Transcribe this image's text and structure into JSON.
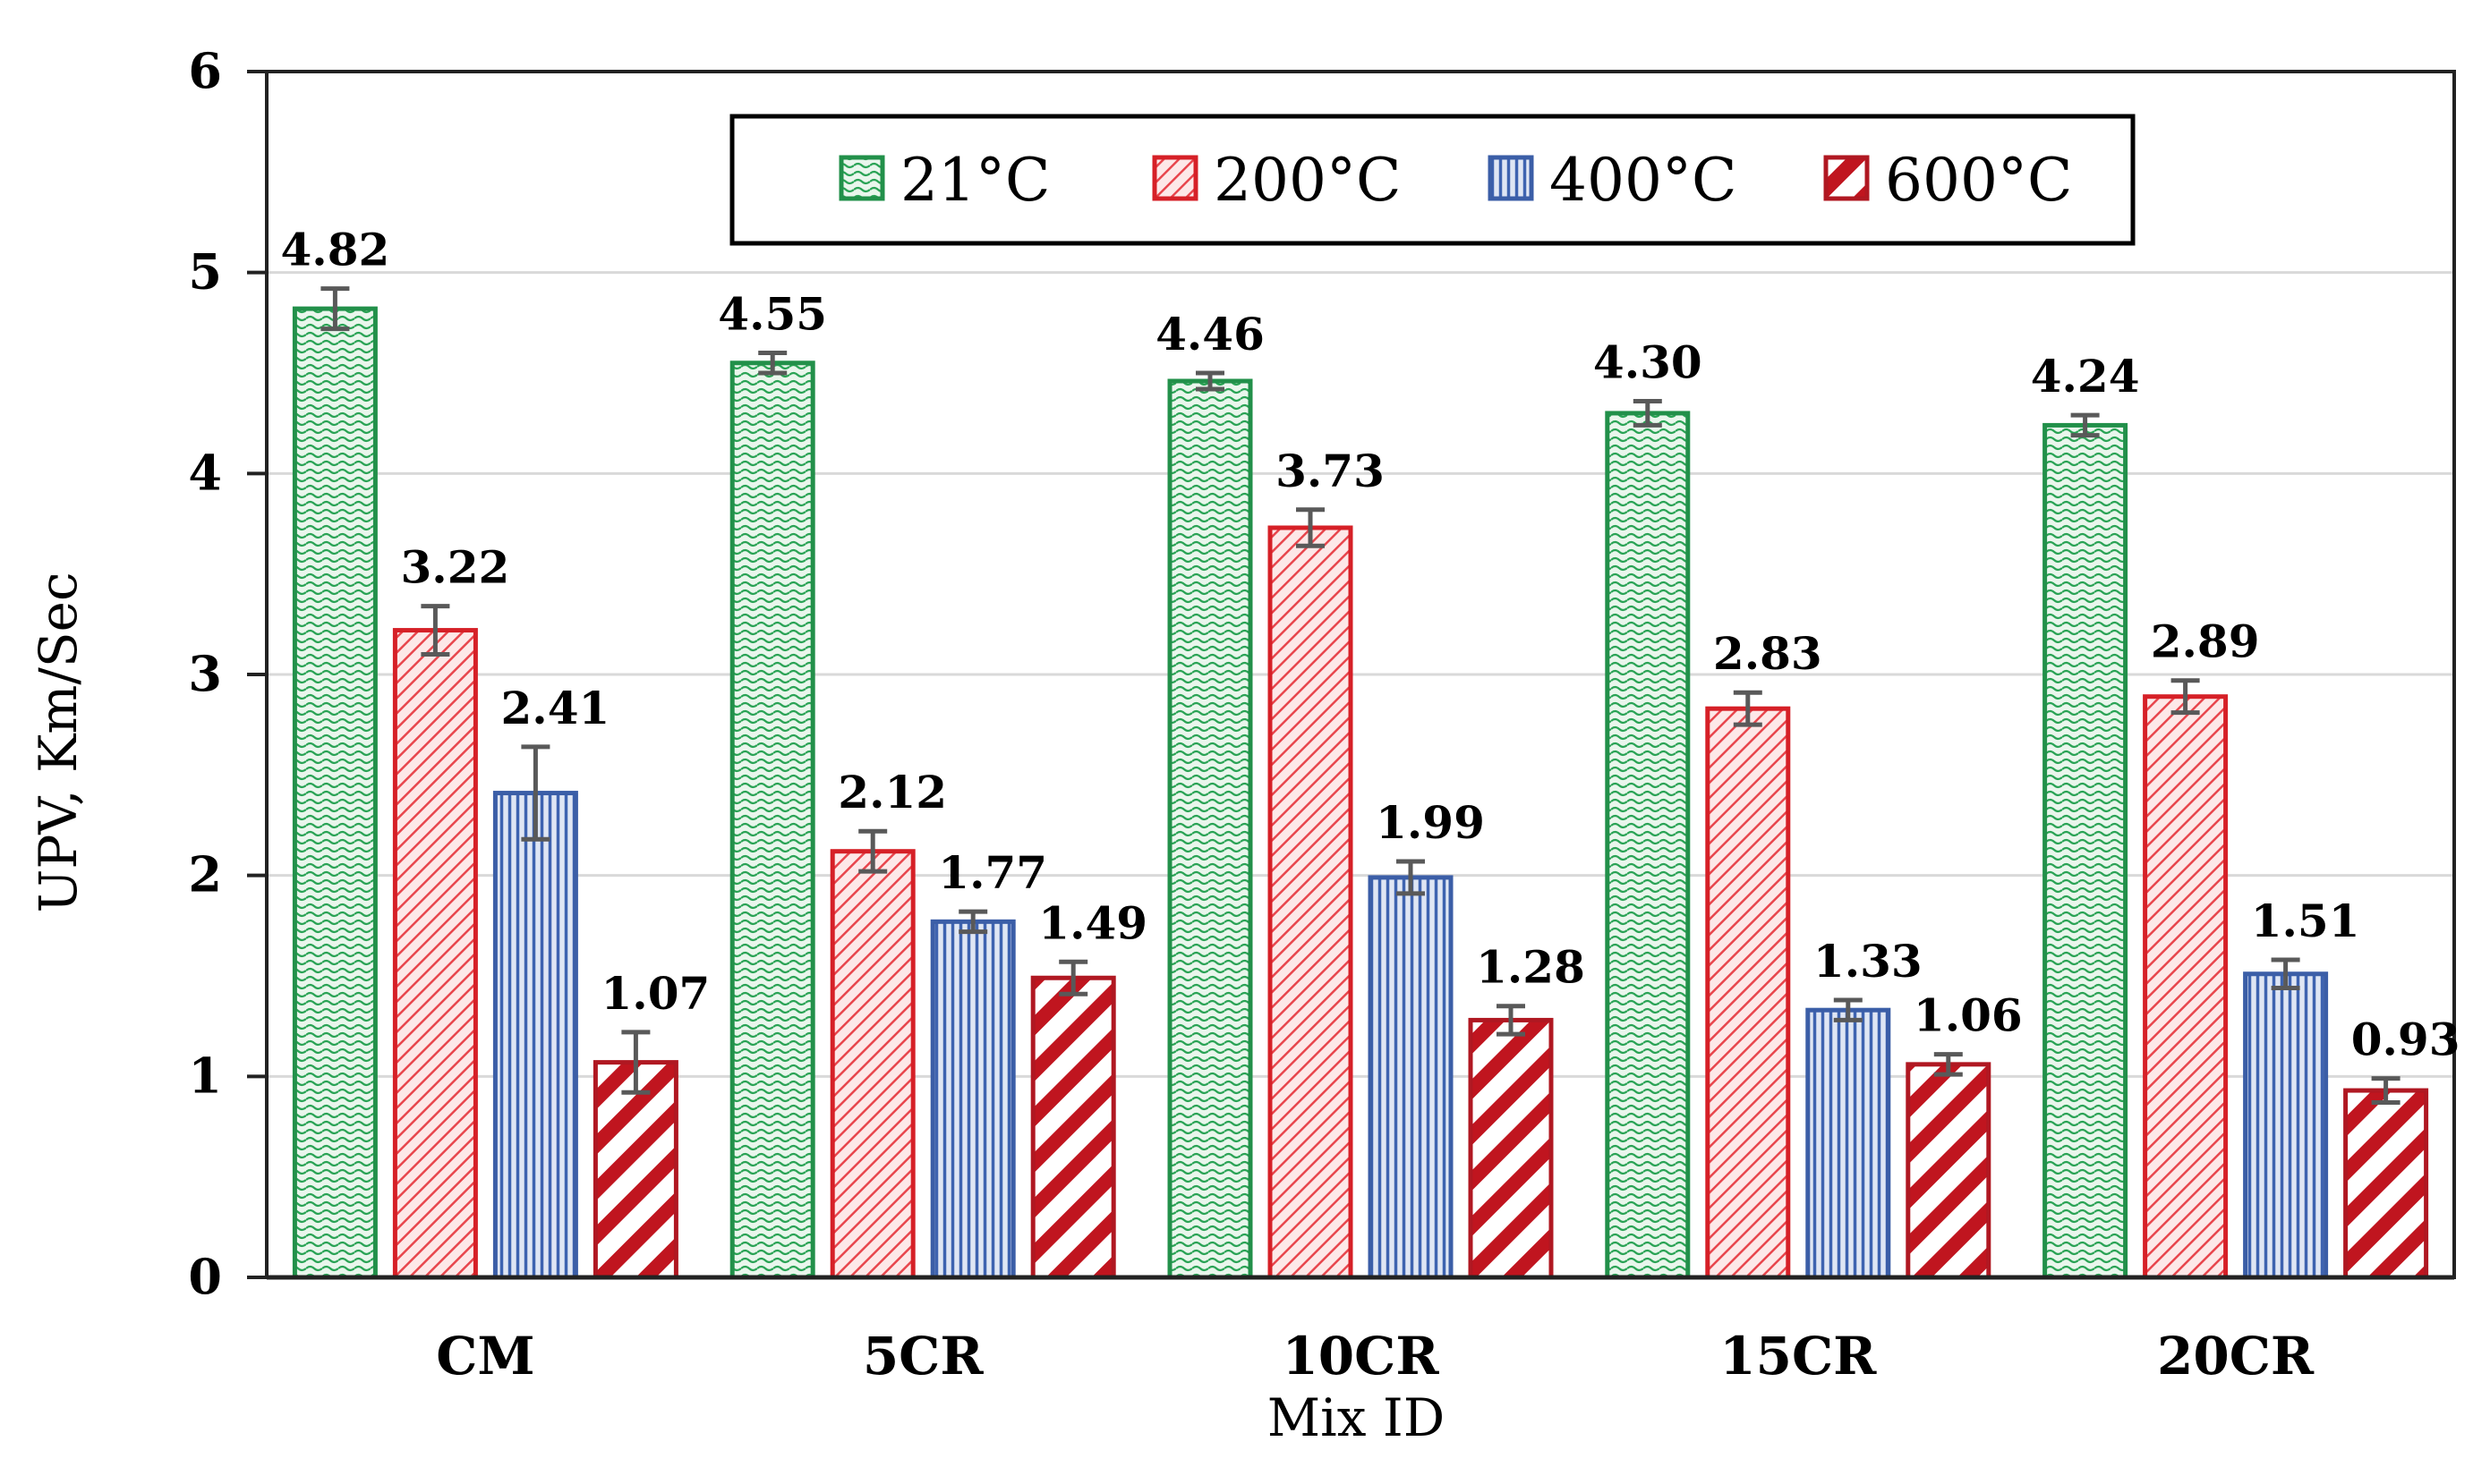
{
  "chart_data": {
    "type": "bar",
    "title": "",
    "xlabel": "Mix ID",
    "ylabel": "UPV, Km/Sec",
    "ylim": [
      0,
      6
    ],
    "yticks": [
      "0",
      "1",
      "2",
      "3",
      "4",
      "5",
      "6"
    ],
    "grid": true,
    "legend_position": "top",
    "categories": [
      "CM",
      "5CR",
      "10CR",
      "15CR",
      "20CR"
    ],
    "series": [
      {
        "name": "21°C",
        "values": [
          4.82,
          4.55,
          4.46,
          4.3,
          4.24
        ],
        "labels": [
          "4.82",
          "4.55",
          "4.46",
          "4.30",
          "4.24"
        ],
        "errors": [
          0.1,
          0.05,
          0.04,
          0.06,
          0.05
        ],
        "pattern": "wave",
        "stroke": "#22904a",
        "fill_bg": "#e9f6ec",
        "fill_fg": "#2aa355"
      },
      {
        "name": "200°C",
        "values": [
          3.22,
          2.12,
          3.73,
          2.83,
          2.89
        ],
        "labels": [
          "3.22",
          "2.12",
          "3.73",
          "2.83",
          "2.89"
        ],
        "errors": [
          0.12,
          0.1,
          0.09,
          0.08,
          0.08
        ],
        "pattern": "diag-thin",
        "stroke": "#d62027",
        "fill_bg": "#fde8e8",
        "fill_fg": "#e8464d"
      },
      {
        "name": "400°C",
        "values": [
          2.41,
          1.77,
          1.99,
          1.33,
          1.51
        ],
        "labels": [
          "2.41",
          "1.77",
          "1.99",
          "1.33",
          "1.51"
        ],
        "errors": [
          0.23,
          0.05,
          0.08,
          0.05,
          0.07
        ],
        "pattern": "vertical",
        "stroke": "#3b5ea7",
        "fill_bg": "#dfe6f4",
        "fill_fg": "#3e63b0"
      },
      {
        "name": "600°C",
        "values": [
          1.07,
          1.49,
          1.28,
          1.06,
          0.93
        ],
        "labels": [
          "1.07",
          "1.49",
          "1.28",
          "1.06",
          "0.93"
        ],
        "errors": [
          0.15,
          0.08,
          0.07,
          0.05,
          0.06
        ],
        "pattern": "diag-thick",
        "stroke": "#b01822",
        "fill_bg": "#ffffff",
        "fill_fg": "#c0151f"
      }
    ],
    "colors": {
      "axis": "#222222",
      "grid": "#d9d9d9",
      "error_bar": "#595959"
    }
  }
}
